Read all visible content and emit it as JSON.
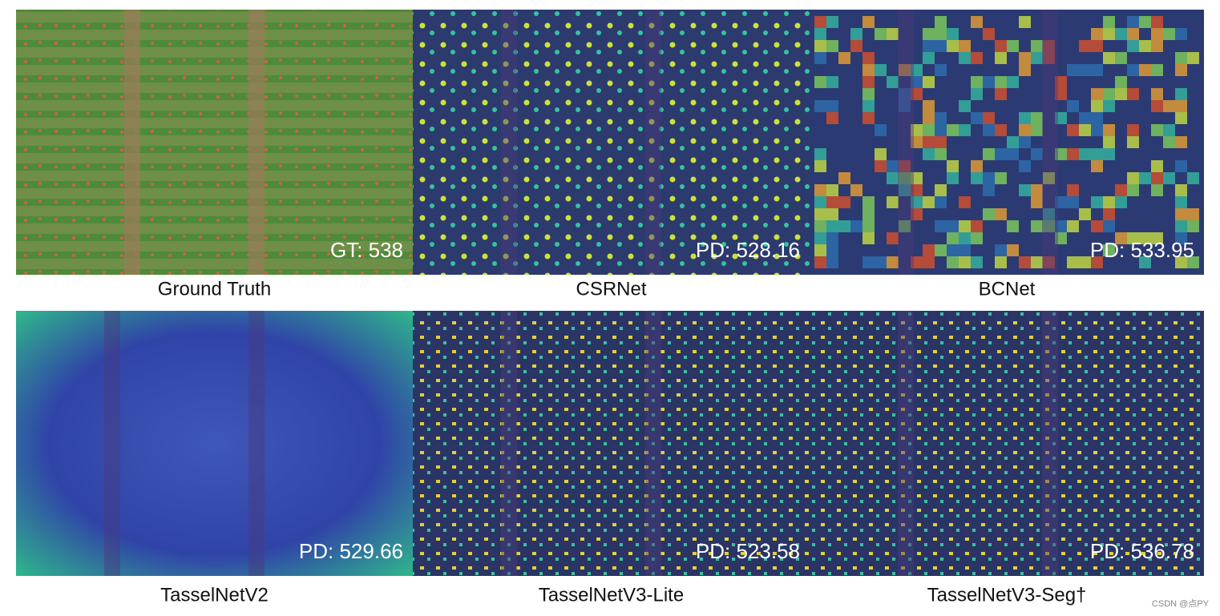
{
  "panels": [
    {
      "caption": "Ground Truth",
      "count_label": "GT: 538"
    },
    {
      "caption": "CSRNet",
      "count_label": "PD: 528.16"
    },
    {
      "caption": "BCNet",
      "count_label": "PD: 533.95"
    },
    {
      "caption": "TasselNetV2",
      "count_label": "PD: 529.66"
    },
    {
      "caption": "TasselNetV3-Lite",
      "count_label": "PD: 523.58"
    },
    {
      "caption": "TasselNetV3-Seg†",
      "count_label": "PD: 536.78"
    }
  ],
  "watermark": "CSDN @点PY"
}
